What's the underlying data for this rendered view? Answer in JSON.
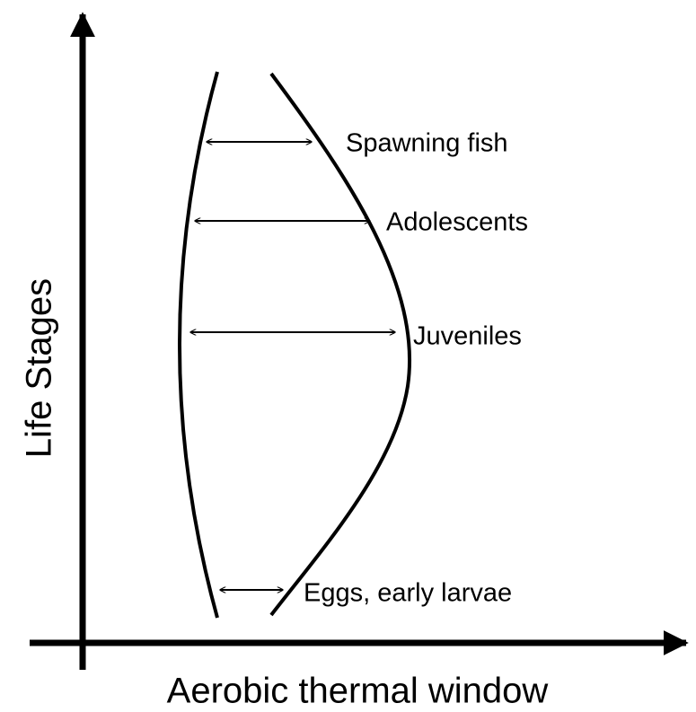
{
  "axes": {
    "y_label": "Life Stages",
    "x_label": "Aerobic thermal window"
  },
  "stages": [
    {
      "label": "Spawning fish"
    },
    {
      "label": "Adolescents"
    },
    {
      "label": "Juveniles"
    },
    {
      "label": "Eggs, early larvae"
    }
  ]
}
